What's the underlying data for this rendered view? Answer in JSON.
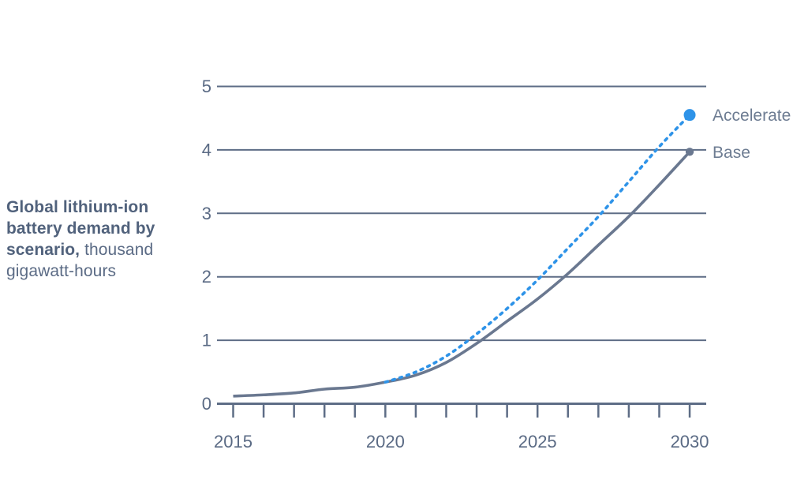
{
  "title": {
    "bold": "Global lithium-ion battery demand by scenario,",
    "regular": "thousand gigawatt-hours"
  },
  "colors": {
    "accent_blue": "#2e93e8",
    "grid_slate": "#5e6d86",
    "line_gray": "#6a7890",
    "axis_text": "#5a6a84",
    "label_text": "#6d7c92"
  },
  "chart_data": {
    "type": "line",
    "title": "Global lithium-ion battery demand by scenario, thousand gigawatt-hours",
    "x": [
      2015,
      2016,
      2017,
      2018,
      2019,
      2020,
      2021,
      2022,
      2023,
      2024,
      2025,
      2026,
      2027,
      2028,
      2029,
      2030
    ],
    "series": [
      {
        "name": "Base",
        "style": "solid",
        "color_key": "line_gray",
        "values": [
          0.12,
          0.14,
          0.17,
          0.23,
          0.26,
          0.34,
          0.45,
          0.65,
          0.95,
          1.3,
          1.65,
          2.05,
          2.5,
          2.95,
          3.45,
          3.97
        ]
      },
      {
        "name": "Accelerate",
        "style": "dotted",
        "color_key": "accent_blue",
        "values": [
          null,
          null,
          null,
          null,
          null,
          0.34,
          0.5,
          0.75,
          1.1,
          1.5,
          1.95,
          2.45,
          2.95,
          3.5,
          4.05,
          4.55
        ]
      }
    ],
    "xticks": [
      2015,
      2020,
      2025,
      2030
    ],
    "yticks": [
      0,
      1,
      2,
      3,
      4,
      5
    ],
    "xlim": [
      2015,
      2030
    ],
    "ylim": [
      0,
      5
    ],
    "grid": "horizontal",
    "legend_position": "end-of-line"
  }
}
